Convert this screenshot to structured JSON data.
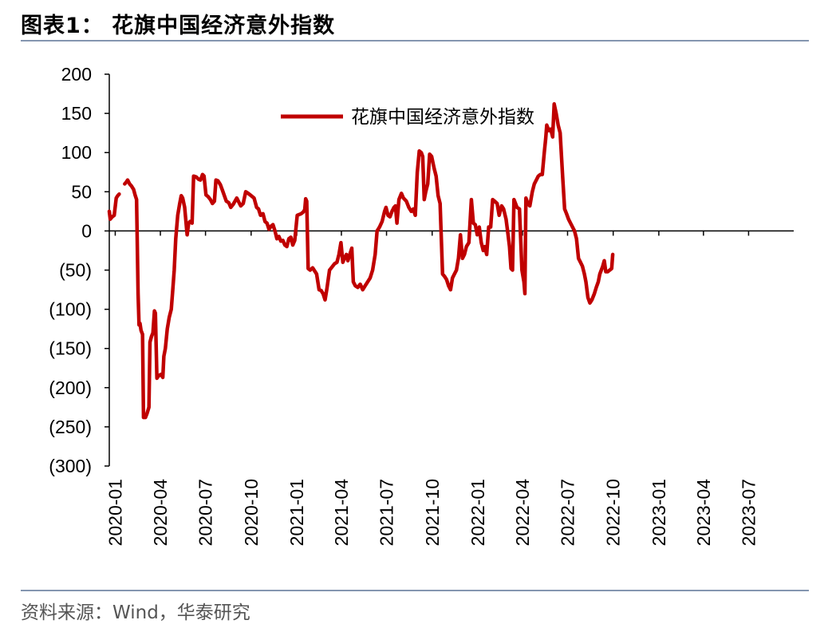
{
  "figure": {
    "title": "图表1：  花旗中国经济意外指数",
    "source": "资料来源：Wind，华泰研究"
  },
  "chart_data": {
    "type": "line",
    "title": "",
    "xlabel": "",
    "ylabel": "",
    "ylim": [
      -300,
      200
    ],
    "yticks": [
      200,
      150,
      100,
      50,
      0,
      -50,
      -100,
      -150,
      -200,
      -250,
      -300
    ],
    "ytick_labels": [
      "200",
      "150",
      "100",
      "50",
      "0",
      "(50)",
      "(100)",
      "(150)",
      "(200)",
      "(250)",
      "(300)"
    ],
    "xlim": [
      "2019-12-20",
      "2023-09-30"
    ],
    "xticks": [
      "2020-01-01",
      "2020-04-01",
      "2020-07-01",
      "2020-10-01",
      "2021-01-01",
      "2021-04-01",
      "2021-07-01",
      "2021-10-01",
      "2022-01-01",
      "2022-04-01",
      "2022-07-01",
      "2022-10-01",
      "2023-01-01",
      "2023-04-01",
      "2023-07-01"
    ],
    "xtick_labels": [
      "2020-01",
      "2020-04",
      "2020-07",
      "2020-10",
      "2021-01",
      "2021-04",
      "2021-07",
      "2021-10",
      "2022-01",
      "2022-04",
      "2022-07",
      "2022-10",
      "2023-01",
      "2023-04",
      "2023-07"
    ],
    "legend_position": "top-center",
    "grid": false,
    "colors": {
      "series": "#c00000",
      "axis": "#000000",
      "rule": "#8496b0"
    },
    "series": [
      {
        "name": "花旗中国经济意外指数",
        "points": [
          [
            "2019-12-20",
            25
          ],
          [
            "2019-12-22",
            15
          ],
          [
            "2019-12-26",
            18
          ],
          [
            "2019-12-30",
            20
          ],
          [
            "2020-01-03",
            42
          ],
          [
            "2020-01-06",
            45
          ],
          [
            "2020-01-09",
            47
          ],
          [
            "2020-01-20",
            60
          ],
          [
            "2020-01-23",
            62
          ],
          [
            "2020-01-26",
            65
          ],
          [
            "2020-01-30",
            60
          ],
          [
            "2020-02-03",
            57
          ],
          [
            "2020-02-07",
            53
          ],
          [
            "2020-02-10",
            46
          ],
          [
            "2020-02-13",
            40
          ],
          [
            "2020-02-16",
            -80
          ],
          [
            "2020-02-18",
            -120
          ],
          [
            "2020-02-20",
            -118
          ],
          [
            "2020-02-22",
            -127
          ],
          [
            "2020-02-25",
            -132
          ],
          [
            "2020-02-27",
            -238
          ],
          [
            "2020-03-02",
            -238
          ],
          [
            "2020-03-05",
            -233
          ],
          [
            "2020-03-09",
            -225
          ],
          [
            "2020-03-11",
            -142
          ],
          [
            "2020-03-14",
            -135
          ],
          [
            "2020-03-17",
            -130
          ],
          [
            "2020-03-20",
            -102
          ],
          [
            "2020-03-22",
            -105
          ],
          [
            "2020-03-25",
            -188
          ],
          [
            "2020-03-28",
            -185
          ],
          [
            "2020-04-02",
            -183
          ],
          [
            "2020-04-06",
            -187
          ],
          [
            "2020-04-08",
            -160
          ],
          [
            "2020-04-11",
            -150
          ],
          [
            "2020-04-15",
            -125
          ],
          [
            "2020-04-19",
            -110
          ],
          [
            "2020-04-23",
            -100
          ],
          [
            "2020-04-26",
            -75
          ],
          [
            "2020-04-29",
            -50
          ],
          [
            "2020-05-02",
            -10
          ],
          [
            "2020-05-06",
            20
          ],
          [
            "2020-05-10",
            35
          ],
          [
            "2020-05-13",
            45
          ],
          [
            "2020-05-16",
            42
          ],
          [
            "2020-05-20",
            30
          ],
          [
            "2020-05-25",
            -5
          ],
          [
            "2020-05-28",
            10
          ],
          [
            "2020-05-31",
            12
          ],
          [
            "2020-06-04",
            10
          ],
          [
            "2020-06-07",
            70
          ],
          [
            "2020-06-12",
            69
          ],
          [
            "2020-06-17",
            66
          ],
          [
            "2020-06-21",
            65
          ],
          [
            "2020-06-25",
            72
          ],
          [
            "2020-06-28",
            70
          ],
          [
            "2020-07-02",
            46
          ],
          [
            "2020-07-06",
            44
          ],
          [
            "2020-07-11",
            40
          ],
          [
            "2020-07-15",
            35
          ],
          [
            "2020-07-19",
            38
          ],
          [
            "2020-07-22",
            65
          ],
          [
            "2020-07-26",
            64
          ],
          [
            "2020-07-31",
            59
          ],
          [
            "2020-08-04",
            52
          ],
          [
            "2020-08-12",
            38
          ],
          [
            "2020-08-17",
            36
          ],
          [
            "2020-08-21",
            30
          ],
          [
            "2020-08-26",
            34
          ],
          [
            "2020-09-02",
            42
          ],
          [
            "2020-09-06",
            37
          ],
          [
            "2020-09-10",
            32
          ],
          [
            "2020-09-15",
            35
          ],
          [
            "2020-09-20",
            50
          ],
          [
            "2020-09-25",
            48
          ],
          [
            "2020-10-01",
            45
          ],
          [
            "2020-10-07",
            42
          ],
          [
            "2020-10-12",
            30
          ],
          [
            "2020-10-16",
            28
          ],
          [
            "2020-10-20",
            20
          ],
          [
            "2020-10-25",
            22
          ],
          [
            "2020-10-29",
            12
          ],
          [
            "2020-11-02",
            10
          ],
          [
            "2020-11-06",
            2
          ],
          [
            "2020-11-10",
            6
          ],
          [
            "2020-11-14",
            8
          ],
          [
            "2020-11-18",
            0
          ],
          [
            "2020-11-22",
            -10
          ],
          [
            "2020-11-26",
            -7
          ],
          [
            "2020-11-30",
            -13
          ],
          [
            "2020-12-04",
            -12
          ],
          [
            "2020-12-08",
            -18
          ],
          [
            "2020-12-12",
            -20
          ],
          [
            "2020-12-16",
            -10
          ],
          [
            "2020-12-20",
            -8
          ],
          [
            "2020-12-24",
            -18
          ],
          [
            "2020-12-28",
            -12
          ],
          [
            "2021-01-02",
            20
          ],
          [
            "2021-01-06",
            21
          ],
          [
            "2021-01-10",
            22
          ],
          [
            "2021-01-14",
            24
          ],
          [
            "2021-01-17",
            27
          ],
          [
            "2021-01-19",
            41
          ],
          [
            "2021-01-21",
            38
          ],
          [
            "2021-01-24",
            -48
          ],
          [
            "2021-01-28",
            -50
          ],
          [
            "2021-02-02",
            -47
          ],
          [
            "2021-02-06",
            -51
          ],
          [
            "2021-02-10",
            -55
          ],
          [
            "2021-02-15",
            -75
          ],
          [
            "2021-02-19",
            -76
          ],
          [
            "2021-02-23",
            -80
          ],
          [
            "2021-02-27",
            -88
          ],
          [
            "2021-03-03",
            -73
          ],
          [
            "2021-03-08",
            -50
          ],
          [
            "2021-03-13",
            -46
          ],
          [
            "2021-03-18",
            -42
          ],
          [
            "2021-03-23",
            -40
          ],
          [
            "2021-03-27",
            -30
          ],
          [
            "2021-03-31",
            -15
          ],
          [
            "2021-04-04",
            -40
          ],
          [
            "2021-04-07",
            -35
          ],
          [
            "2021-04-11",
            -30
          ],
          [
            "2021-04-14",
            -38
          ],
          [
            "2021-04-18",
            -30
          ],
          [
            "2021-04-22",
            -22
          ],
          [
            "2021-04-25",
            -65
          ],
          [
            "2021-04-29",
            -70
          ],
          [
            "2021-05-04",
            -72
          ],
          [
            "2021-05-09",
            -68
          ],
          [
            "2021-05-14",
            -75
          ],
          [
            "2021-05-19",
            -70
          ],
          [
            "2021-05-24",
            -65
          ],
          [
            "2021-05-29",
            -60
          ],
          [
            "2021-06-03",
            -50
          ],
          [
            "2021-06-08",
            -30
          ],
          [
            "2021-06-12",
            0
          ],
          [
            "2021-06-17",
            5
          ],
          [
            "2021-06-22",
            12
          ],
          [
            "2021-06-27",
            25
          ],
          [
            "2021-06-30",
            30
          ],
          [
            "2021-07-04",
            20
          ],
          [
            "2021-07-08",
            18
          ],
          [
            "2021-07-12",
            25
          ],
          [
            "2021-07-16",
            30
          ],
          [
            "2021-07-19",
            32
          ],
          [
            "2021-07-22",
            10
          ],
          [
            "2021-07-26",
            40
          ],
          [
            "2021-07-31",
            48
          ],
          [
            "2021-08-04",
            42
          ],
          [
            "2021-08-10",
            38
          ],
          [
            "2021-08-15",
            30
          ],
          [
            "2021-08-20",
            25
          ],
          [
            "2021-08-24",
            28
          ],
          [
            "2021-08-28",
            20
          ],
          [
            "2021-09-01",
            75
          ],
          [
            "2021-09-05",
            102
          ],
          [
            "2021-09-09",
            100
          ],
          [
            "2021-09-12",
            95
          ],
          [
            "2021-09-15",
            40
          ],
          [
            "2021-09-18",
            50
          ],
          [
            "2021-09-22",
            60
          ],
          [
            "2021-09-26",
            98
          ],
          [
            "2021-09-30",
            95
          ],
          [
            "2021-10-05",
            80
          ],
          [
            "2021-10-09",
            70
          ],
          [
            "2021-10-13",
            45
          ],
          [
            "2021-10-17",
            35
          ],
          [
            "2021-10-22",
            -55
          ],
          [
            "2021-10-26",
            -58
          ],
          [
            "2021-10-30",
            -62
          ],
          [
            "2021-11-03",
            -70
          ],
          [
            "2021-11-07",
            -75
          ],
          [
            "2021-11-11",
            -60
          ],
          [
            "2021-11-15",
            -55
          ],
          [
            "2021-11-19",
            -50
          ],
          [
            "2021-11-23",
            -35
          ],
          [
            "2021-11-27",
            -5
          ],
          [
            "2021-12-01",
            -35
          ],
          [
            "2021-12-05",
            -30
          ],
          [
            "2021-12-09",
            -20
          ],
          [
            "2021-12-14",
            -15
          ],
          [
            "2021-12-19",
            40
          ],
          [
            "2021-12-23",
            10
          ],
          [
            "2021-12-27",
            8
          ],
          [
            "2021-12-31",
            -5
          ],
          [
            "2022-01-04",
            5
          ],
          [
            "2022-01-08",
            -15
          ],
          [
            "2022-01-12",
            -25
          ],
          [
            "2022-01-15",
            -20
          ],
          [
            "2022-01-19",
            -30
          ],
          [
            "2022-01-23",
            5
          ],
          [
            "2022-01-27",
            5
          ],
          [
            "2022-01-31",
            40
          ],
          [
            "2022-02-04",
            38
          ],
          [
            "2022-02-09",
            35
          ],
          [
            "2022-02-13",
            20
          ],
          [
            "2022-02-18",
            32
          ],
          [
            "2022-02-22",
            28
          ],
          [
            "2022-02-27",
            15
          ],
          [
            "2022-03-03",
            -5
          ],
          [
            "2022-03-06",
            -20
          ],
          [
            "2022-03-09",
            -48
          ],
          [
            "2022-03-12",
            -50
          ],
          [
            "2022-03-15",
            40
          ],
          [
            "2022-03-18",
            35
          ],
          [
            "2022-03-21",
            30
          ],
          [
            "2022-03-26",
            28
          ],
          [
            "2022-03-31",
            -50
          ],
          [
            "2022-04-04",
            -65
          ],
          [
            "2022-04-06",
            -80
          ],
          [
            "2022-04-08",
            42
          ],
          [
            "2022-04-12",
            35
          ],
          [
            "2022-04-16",
            32
          ],
          [
            "2022-04-21",
            50
          ],
          [
            "2022-04-25",
            60
          ],
          [
            "2022-04-29",
            65
          ],
          [
            "2022-05-03",
            70
          ],
          [
            "2022-05-07",
            72
          ],
          [
            "2022-05-11",
            72
          ],
          [
            "2022-05-15",
            100
          ],
          [
            "2022-05-18",
            118
          ],
          [
            "2022-05-20",
            135
          ],
          [
            "2022-05-24",
            128
          ],
          [
            "2022-05-28",
            130
          ],
          [
            "2022-06-01",
            120
          ],
          [
            "2022-06-04",
            162
          ],
          [
            "2022-06-08",
            150
          ],
          [
            "2022-06-12",
            135
          ],
          [
            "2022-06-16",
            125
          ],
          [
            "2022-06-21",
            70
          ],
          [
            "2022-06-25",
            28
          ],
          [
            "2022-06-29",
            22
          ],
          [
            "2022-07-03",
            15
          ],
          [
            "2022-07-07",
            10
          ],
          [
            "2022-07-11",
            5
          ],
          [
            "2022-07-15",
            0
          ],
          [
            "2022-07-19",
            -10
          ],
          [
            "2022-07-23",
            -35
          ],
          [
            "2022-07-27",
            -40
          ],
          [
            "2022-07-31",
            -45
          ],
          [
            "2022-08-04",
            -55
          ],
          [
            "2022-08-07",
            -65
          ],
          [
            "2022-08-11",
            -85
          ],
          [
            "2022-08-15",
            -92
          ],
          [
            "2022-08-19",
            -88
          ],
          [
            "2022-08-24",
            -80
          ],
          [
            "2022-08-28",
            -72
          ],
          [
            "2022-09-01",
            -65
          ],
          [
            "2022-09-04",
            -55
          ],
          [
            "2022-09-07",
            -50
          ],
          [
            "2022-09-10",
            -45
          ],
          [
            "2022-09-13",
            -38
          ],
          [
            "2022-09-16",
            -52
          ],
          [
            "2022-09-20",
            -52
          ],
          [
            "2022-09-24",
            -50
          ],
          [
            "2022-09-28",
            -48
          ],
          [
            "2022-09-30",
            -30
          ]
        ]
      }
    ]
  }
}
